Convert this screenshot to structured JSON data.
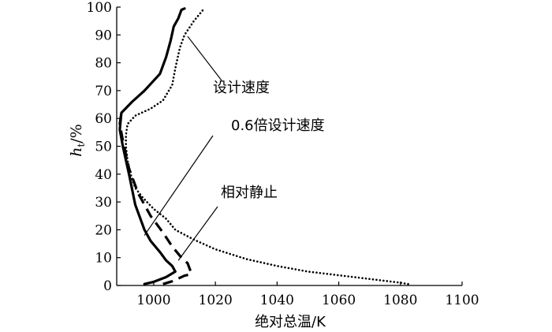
{
  "chart_data": {
    "type": "line",
    "title": "",
    "xlabel": "绝对总温/K",
    "ylabel": {
      "main": "h",
      "sub": "t",
      "rest": "/%"
    },
    "xlim": [
      988,
      1100
    ],
    "ylim": [
      0,
      100
    ],
    "xticks": [
      1000,
      1020,
      1040,
      1060,
      1080,
      1100
    ],
    "yticks": [
      0,
      10,
      20,
      30,
      40,
      50,
      60,
      70,
      80,
      90,
      100
    ],
    "grid": false,
    "series": [
      {
        "name": "设计速度",
        "style": "dotted",
        "points": [
          [
            1082.5,
            0.5
          ],
          [
            1080,
            1
          ],
          [
            1065,
            3
          ],
          [
            1050,
            5
          ],
          [
            1040,
            7
          ],
          [
            1030,
            9.5
          ],
          [
            1020,
            13
          ],
          [
            1013,
            16.5
          ],
          [
            1007,
            20
          ],
          [
            1004,
            24
          ],
          [
            1000,
            27.5
          ],
          [
            996.5,
            31.5
          ],
          [
            994,
            35
          ],
          [
            992.5,
            40
          ],
          [
            991.5,
            45
          ],
          [
            991,
            50
          ],
          [
            991,
            54
          ],
          [
            991.5,
            58
          ],
          [
            994,
            61
          ],
          [
            999,
            63.5
          ],
          [
            1003,
            66.5
          ],
          [
            1006,
            72
          ],
          [
            1007,
            78
          ],
          [
            1008.5,
            85.5
          ],
          [
            1010,
            90
          ],
          [
            1013,
            95
          ],
          [
            1016,
            99
          ]
        ]
      },
      {
        "name": "0.6倍设计速度",
        "style": "solid",
        "points": [
          [
            997,
            0.5
          ],
          [
            1000,
            1.3
          ],
          [
            1004,
            3
          ],
          [
            1007,
            5
          ],
          [
            1006,
            7
          ],
          [
            1004,
            9
          ],
          [
            1002,
            12
          ],
          [
            999,
            16
          ],
          [
            997,
            20
          ],
          [
            994,
            29
          ],
          [
            992,
            40
          ],
          [
            990,
            50
          ],
          [
            989,
            56
          ],
          [
            989.5,
            62
          ],
          [
            993,
            66
          ],
          [
            997,
            70
          ],
          [
            1002,
            76
          ],
          [
            1004,
            82
          ],
          [
            1005.5,
            88
          ],
          [
            1006.5,
            93
          ],
          [
            1008,
            96
          ],
          [
            1009,
            99
          ],
          [
            1010,
            99.5
          ]
        ]
      },
      {
        "name": "相对静止",
        "style": "dashed",
        "points": [
          [
            1003,
            0.5
          ],
          [
            1006,
            1.5
          ],
          [
            1010,
            3.5
          ],
          [
            1012,
            4
          ],
          [
            1012,
            5
          ],
          [
            1011,
            8
          ],
          [
            1009,
            10
          ],
          [
            1006,
            14
          ],
          [
            1003,
            19
          ],
          [
            999,
            25
          ],
          [
            995,
            33
          ],
          [
            992,
            42
          ],
          [
            990,
            52
          ],
          [
            989,
            58
          ],
          [
            989.5,
            62
          ]
        ]
      }
    ],
    "annotations": [
      {
        "text": "设计速度",
        "series": "设计速度",
        "at": [
          1011,
          89.5
        ]
      },
      {
        "text": "0.6倍设计速度",
        "series": "0.6倍设计速度",
        "at": [
          997,
          18
        ]
      },
      {
        "text": "相对静止",
        "series": "相对静止",
        "at": [
          1008,
          9
        ]
      }
    ]
  }
}
